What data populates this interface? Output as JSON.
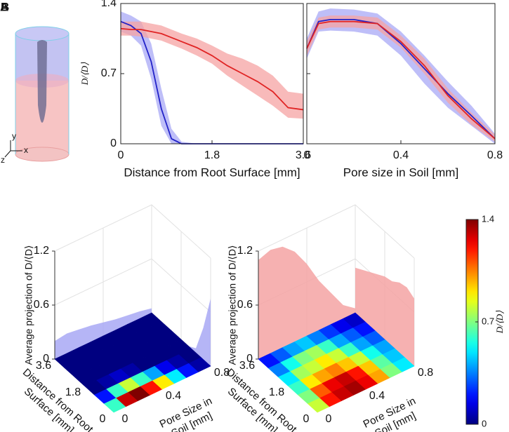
{
  "figure": {
    "panel_labels": [
      "A",
      "B"
    ],
    "inset_axes": [
      "y",
      "x",
      "z"
    ]
  },
  "chart_data": [
    {
      "type": "band_line",
      "ylabel": "D/⟨D⟩",
      "xlabel": "Distance from Root Surface [mm]",
      "x": [
        0,
        0.2,
        0.4,
        0.6,
        0.8,
        1.0,
        1.2,
        1.5,
        1.8,
        2.1,
        2.4,
        2.7,
        3.0,
        3.3,
        3.6
      ],
      "xlim": [
        0,
        3.6
      ],
      "xticks": [
        0,
        1.8,
        3.6
      ],
      "ylim": [
        0,
        1.4
      ],
      "yticks": [
        0,
        0.7,
        1.4
      ],
      "series": [
        {
          "color": "#2222c8",
          "band_color": "#a8a8f5",
          "values": [
            1.22,
            1.18,
            1.1,
            0.82,
            0.35,
            0.05,
            0,
            0,
            0,
            0,
            0,
            0,
            0,
            0,
            0
          ],
          "upper": [
            1.32,
            1.28,
            1.22,
            1.0,
            0.55,
            0.15,
            0.02,
            0,
            0,
            0,
            0,
            0,
            0,
            0,
            0
          ],
          "lower": [
            1.12,
            1.08,
            0.98,
            0.65,
            0.18,
            0,
            0,
            0,
            0,
            0,
            0,
            0,
            0,
            0,
            0
          ]
        },
        {
          "color": "#e02424",
          "band_color": "#f5a3a3",
          "values": [
            1.15,
            1.14,
            1.14,
            1.12,
            1.1,
            1.06,
            1.02,
            0.96,
            0.88,
            0.78,
            0.7,
            0.62,
            0.52,
            0.36,
            0.34
          ],
          "upper": [
            1.22,
            1.22,
            1.22,
            1.2,
            1.18,
            1.14,
            1.1,
            1.05,
            0.98,
            0.9,
            0.85,
            0.78,
            0.68,
            0.52,
            0.5
          ],
          "lower": [
            1.08,
            1.08,
            1.07,
            1.05,
            1.03,
            0.99,
            0.95,
            0.88,
            0.8,
            0.68,
            0.58,
            0.48,
            0.38,
            0.26,
            0.25
          ]
        }
      ]
    },
    {
      "type": "band_line",
      "xlabel": "Pore size in Soil [mm]",
      "x": [
        0,
        0.05,
        0.1,
        0.2,
        0.3,
        0.4,
        0.5,
        0.6,
        0.7,
        0.8
      ],
      "xlim": [
        0,
        0.8
      ],
      "xticks": [
        0,
        0.4,
        0.8
      ],
      "ylim": [
        0,
        1.4
      ],
      "yticks": [
        0,
        0.7,
        1.4
      ],
      "series": [
        {
          "color": "#2222c8",
          "band_color": "#a8a8f5",
          "values": [
            0.95,
            1.22,
            1.24,
            1.24,
            1.2,
            1.0,
            0.75,
            0.5,
            0.28,
            0.05
          ],
          "upper": [
            1.05,
            1.32,
            1.35,
            1.34,
            1.3,
            1.12,
            0.88,
            0.62,
            0.38,
            0.1
          ],
          "lower": [
            0.85,
            1.12,
            1.13,
            1.12,
            1.08,
            0.88,
            0.6,
            0.36,
            0.18,
            0.0
          ]
        },
        {
          "color": "#e02424",
          "band_color": "#f5a3a3",
          "values": [
            0.95,
            1.2,
            1.22,
            1.22,
            1.2,
            1.02,
            0.78,
            0.48,
            0.25,
            0.05
          ],
          "upper": [
            1.02,
            1.26,
            1.28,
            1.28,
            1.26,
            1.08,
            0.85,
            0.55,
            0.31,
            0.09
          ],
          "lower": [
            0.88,
            1.14,
            1.16,
            1.16,
            1.14,
            0.96,
            0.7,
            0.41,
            0.19,
            0.02
          ]
        }
      ]
    },
    {
      "type": "heatmap3d",
      "zlabel": "Average projection of D/⟨D⟩",
      "dlabel": [
        "Distance from Root",
        "Surface [mm]"
      ],
      "plabel": [
        "Pore Size in",
        "Soil [mm]"
      ],
      "dlim": [
        0,
        3.6
      ],
      "dticks": [
        0,
        1.8,
        3.6
      ],
      "plim": [
        0,
        0.8
      ],
      "pticks": [
        0,
        0.4,
        0.8
      ],
      "zlim": [
        0,
        1.2
      ],
      "zticks": [
        0,
        0.6,
        1.2
      ],
      "clim": [
        0,
        1.4
      ],
      "wall_color": "#a8a8f5",
      "z": [
        [
          0.6,
          1.3,
          1.4,
          1.2,
          0.9,
          0.5,
          0.2,
          0.05
        ],
        [
          0.2,
          0.6,
          0.8,
          0.6,
          0.4,
          0.15,
          0.05,
          0
        ],
        [
          0,
          0.05,
          0.1,
          0.05,
          0,
          0,
          0,
          0
        ],
        [
          0,
          0,
          0,
          0,
          0,
          0,
          0,
          0
        ],
        [
          0,
          0,
          0,
          0,
          0,
          0,
          0,
          0
        ],
        [
          0,
          0,
          0,
          0,
          0,
          0,
          0,
          0
        ]
      ],
      "projection_pore": [
        0.2,
        0.22,
        0.2,
        0.18,
        0.15,
        0.12,
        0.1,
        0.08,
        0.05
      ],
      "projection_distance": [
        0.75,
        0.35,
        0.05,
        0,
        0,
        0,
        0,
        0,
        0
      ]
    },
    {
      "type": "heatmap3d",
      "zlabel": "Average projection of D/⟨D⟩",
      "dlabel": [
        "Distance from Root",
        "Surface [mm]"
      ],
      "plabel": [
        "Pore Size in",
        "Soil [mm]"
      ],
      "dlim": [
        0,
        3.6
      ],
      "dticks": [
        0,
        1.8,
        3.6
      ],
      "plim": [
        0,
        0.8
      ],
      "pticks": [
        0,
        0.4,
        0.8
      ],
      "zlim": [
        0,
        1.2
      ],
      "zticks": [
        0,
        0.6,
        1.2
      ],
      "clim": [
        0,
        1.4
      ],
      "wall_color": "#f5a3a3",
      "z": [
        [
          0.8,
          1.2,
          1.3,
          1.35,
          1.25,
          1.0,
          0.7,
          0.5
        ],
        [
          0.7,
          1.1,
          1.25,
          1.3,
          1.2,
          0.95,
          0.65,
          0.45
        ],
        [
          0.6,
          0.9,
          1.0,
          1.05,
          0.95,
          0.8,
          0.55,
          0.4
        ],
        [
          0.5,
          0.75,
          0.8,
          0.9,
          0.8,
          0.6,
          0.4,
          0.3
        ],
        [
          0.35,
          0.55,
          0.7,
          0.75,
          0.6,
          0.4,
          0.3,
          0.2
        ],
        [
          0.2,
          0.3,
          0.4,
          0.45,
          0.35,
          0.25,
          0.15,
          0.1
        ]
      ],
      "projection_pore": [
        1.1,
        1.15,
        1.12,
        1.0,
        0.8,
        0.55,
        0.35,
        0.15,
        0.05
      ],
      "projection_distance": [
        0.75,
        0.8,
        0.78,
        0.72,
        0.7,
        0.65,
        0.6,
        0.55,
        0.5
      ]
    },
    {
      "type": "colorbar",
      "label": "D/⟨D⟩",
      "clim": [
        0,
        1.4
      ],
      "cticks": [
        0,
        0.7,
        1.4
      ]
    }
  ]
}
